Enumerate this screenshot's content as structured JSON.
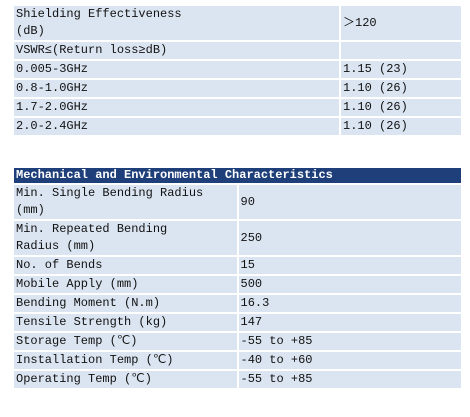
{
  "electrical": {
    "rows": [
      [
        "Shielding Effectiveness (dB)",
        "＞120"
      ],
      [
        "VSWR≤(Return loss≥dB)"
      ],
      [
        "0.005-3GHz",
        "1.15 (23)"
      ],
      [
        "0.8-1.0GHz",
        "1.10 (26)"
      ],
      [
        "1.7-2.0GHz",
        "1.10 (26)"
      ],
      [
        "2.0-2.4GHz",
        "1.10 (26)"
      ]
    ]
  },
  "mechanical": {
    "title": "Mechanical and Environmental Characteristics",
    "rows": [
      [
        "Min. Single Bending Radius (mm)",
        "90"
      ],
      [
        "Min. Repeated Bending Radius (mm)",
        "250"
      ],
      [
        "No. of Bends",
        "15"
      ],
      [
        "Mobile Apply (mm)",
        "500"
      ],
      [
        "Bending Moment (N.m)",
        "16.3"
      ],
      [
        "Tensile Strength (kg)",
        "147"
      ],
      [
        "Storage Temp (℃)",
        "-55 to +85"
      ],
      [
        "Installation Temp (℃)",
        "-40 to +60"
      ],
      [
        "Operating Temp (℃)",
        "-55 to +85"
      ]
    ]
  }
}
